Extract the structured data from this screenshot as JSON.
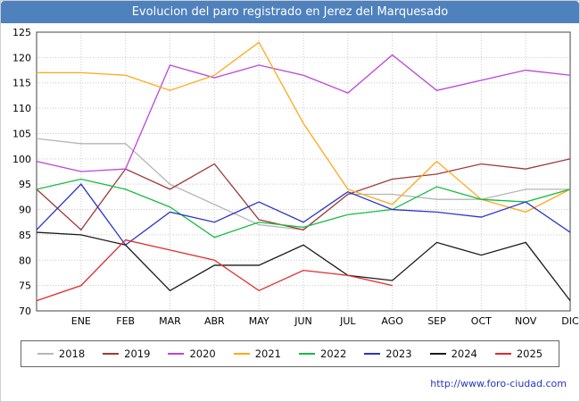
{
  "chart_data": {
    "type": "line",
    "title": "Evolucion del paro registrado en Jerez del Marquesado",
    "categories": [
      "ENE",
      "FEB",
      "MAR",
      "ABR",
      "MAY",
      "JUN",
      "JUL",
      "AGO",
      "SEP",
      "OCT",
      "NOV",
      "DIC"
    ],
    "ylabel": "",
    "xlabel": "",
    "ylim": [
      70,
      125
    ],
    "ytick_step": 5,
    "grid": true,
    "legend_position": "bottom",
    "series": [
      {
        "name": "2018",
        "color": "#b5b5b5",
        "start": 104,
        "values": [
          103,
          103,
          95,
          91,
          87,
          86,
          93,
          93,
          92,
          92,
          94,
          94
        ]
      },
      {
        "name": "2019",
        "color": "#9e3939",
        "start": 94,
        "values": [
          86,
          98,
          94,
          99,
          88,
          86,
          93,
          96,
          97,
          99,
          98,
          100
        ]
      },
      {
        "name": "2020",
        "color": "#bb44dd",
        "start": 99.5,
        "values": [
          97.5,
          98,
          118.5,
          116,
          118.5,
          116.5,
          113,
          120.5,
          113.5,
          115.5,
          117.5,
          116.5
        ]
      },
      {
        "name": "2021",
        "color": "#ffa815",
        "start": 117,
        "values": [
          117,
          116.5,
          113.5,
          116.5,
          123,
          107,
          94,
          91,
          99.5,
          92,
          89.5,
          94
        ]
      },
      {
        "name": "2022",
        "color": "#18bb44",
        "start": 94,
        "values": [
          96,
          94,
          90.5,
          84.5,
          87.5,
          86.5,
          89,
          90,
          94.5,
          92,
          91.5,
          94
        ]
      },
      {
        "name": "2023",
        "color": "#2934c9",
        "start": 86,
        "values": [
          95,
          83,
          89.5,
          87.5,
          91.5,
          87.5,
          93.5,
          90,
          89.5,
          88.5,
          91.5,
          85.5
        ]
      },
      {
        "name": "2024",
        "color": "#1a1a1a",
        "start": 85.5,
        "values": [
          85,
          83,
          74,
          79,
          79,
          83,
          77,
          76,
          83.5,
          81,
          83.5,
          72
        ]
      },
      {
        "name": "2025",
        "color": "#e02b2b",
        "start": 72,
        "values": [
          75,
          84,
          82,
          80,
          74,
          78,
          77,
          75
        ]
      }
    ]
  },
  "footer": {
    "url": "http://www.foro-ciudad.com"
  },
  "colors": {
    "title_bar": "#4f81bd",
    "title_text": "#ffffff",
    "footer_link": "#2636c4",
    "grid": "#c8c8c8",
    "plot_border": "#444444",
    "tick_text": "#000000"
  }
}
